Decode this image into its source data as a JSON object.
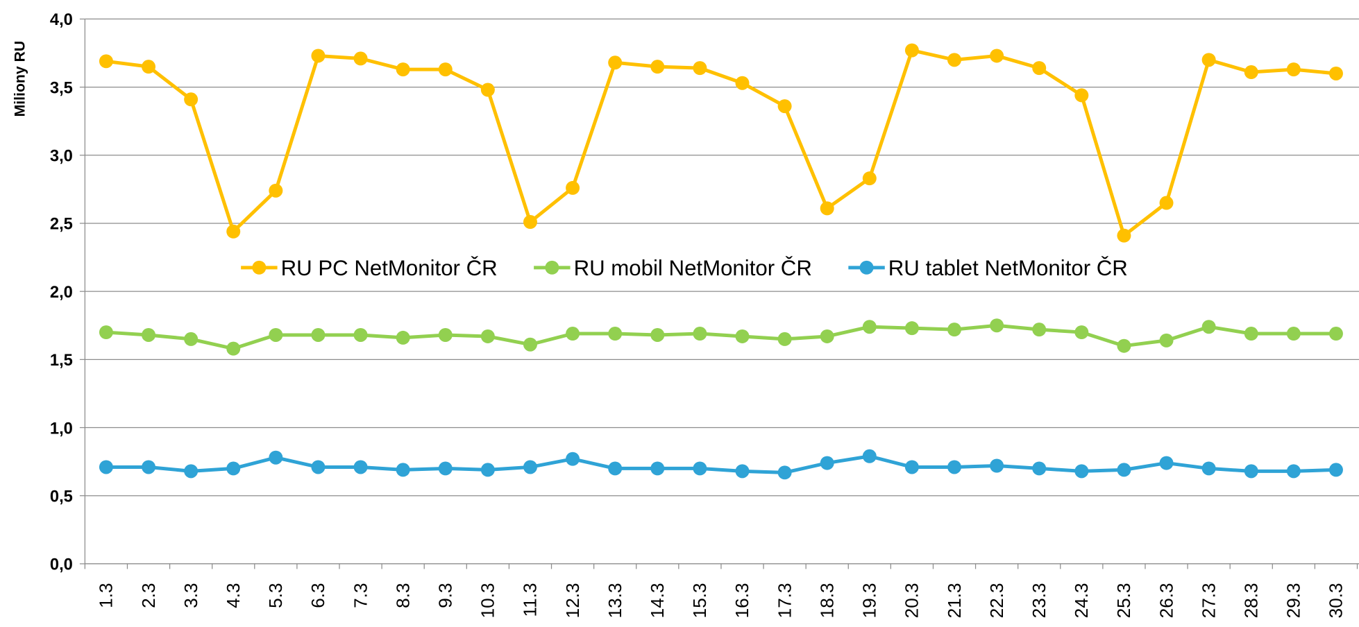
{
  "chart_data": {
    "type": "line",
    "y_label": "Miliony RU",
    "categories": [
      "1.3",
      "2.3",
      "3.3",
      "4.3",
      "5.3",
      "6.3",
      "7.3",
      "8.3",
      "9.3",
      "10.3",
      "11.3",
      "12.3",
      "13.3",
      "14.3",
      "15.3",
      "16.3",
      "17.3",
      "18.3",
      "19.3",
      "20.3",
      "21.3",
      "22.3",
      "23.3",
      "24.3",
      "25.3",
      "26.3",
      "27.3",
      "28.3",
      "29.3",
      "30.3"
    ],
    "series": [
      {
        "name": "RU PC NetMonitor ČR",
        "color": "#ffc000",
        "values": [
          3.69,
          3.65,
          3.41,
          2.44,
          2.74,
          3.73,
          3.71,
          3.63,
          3.63,
          3.48,
          2.51,
          2.76,
          3.68,
          3.65,
          3.64,
          3.53,
          3.36,
          2.61,
          2.83,
          3.77,
          3.7,
          3.73,
          3.64,
          3.44,
          2.41,
          2.65,
          3.7,
          3.61,
          3.63,
          3.6
        ]
      },
      {
        "name": "RU mobil NetMonitor ČR",
        "color": "#92d050",
        "values": [
          1.7,
          1.68,
          1.65,
          1.58,
          1.68,
          1.68,
          1.68,
          1.66,
          1.68,
          1.67,
          1.61,
          1.69,
          1.69,
          1.68,
          1.69,
          1.67,
          1.65,
          1.67,
          1.74,
          1.73,
          1.72,
          1.75,
          1.72,
          1.7,
          1.6,
          1.64,
          1.74,
          1.69,
          1.69,
          1.69
        ]
      },
      {
        "name": "RU tablet NetMonitor ČR",
        "color": "#2fa3d6",
        "values": [
          0.71,
          0.71,
          0.68,
          0.7,
          0.78,
          0.71,
          0.71,
          0.69,
          0.7,
          0.69,
          0.71,
          0.77,
          0.7,
          0.7,
          0.7,
          0.68,
          0.67,
          0.74,
          0.79,
          0.71,
          0.71,
          0.72,
          0.7,
          0.68,
          0.69,
          0.74,
          0.7,
          0.68,
          0.68,
          0.69
        ]
      }
    ],
    "ylim": [
      0,
      4
    ],
    "yticks": [
      {
        "value": 0,
        "label": "0,0"
      },
      {
        "value": 0.5,
        "label": "0,5"
      },
      {
        "value": 1,
        "label": "1,0"
      },
      {
        "value": 1.5,
        "label": "1,5"
      },
      {
        "value": 2,
        "label": "2,0"
      },
      {
        "value": 2.5,
        "label": "2,5"
      },
      {
        "value": 3,
        "label": "3,0"
      },
      {
        "value": 3.5,
        "label": "3,5"
      },
      {
        "value": 4,
        "label": "4,0"
      }
    ],
    "grid": true,
    "legend": "center"
  }
}
